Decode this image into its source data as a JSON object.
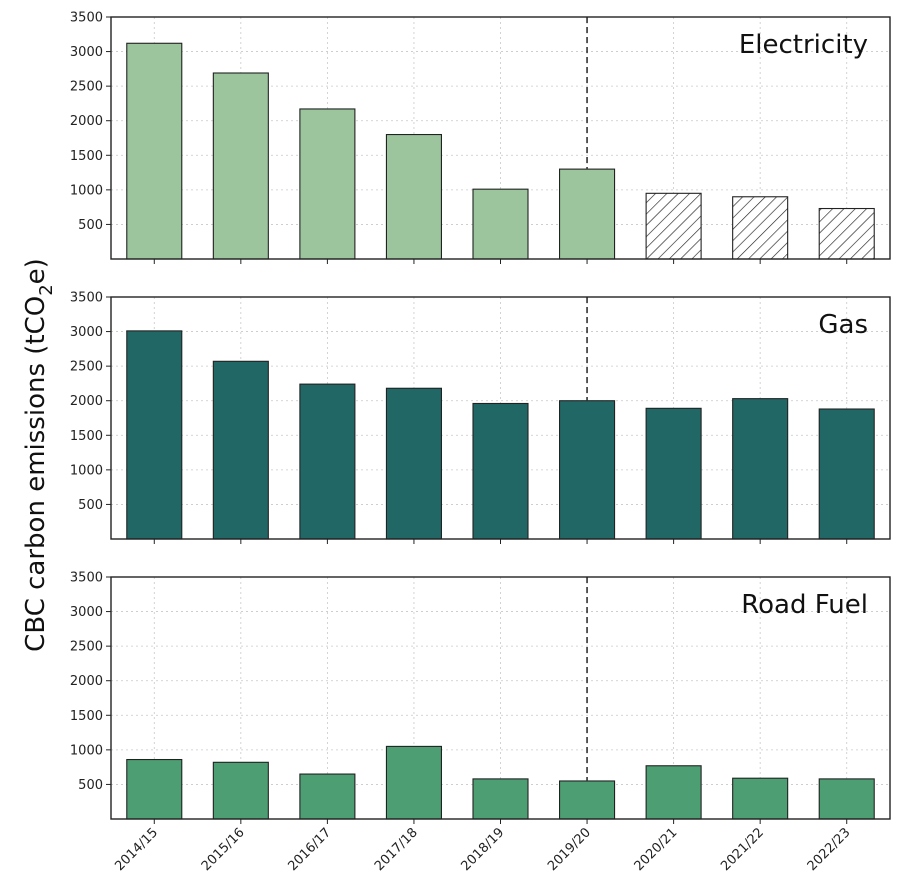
{
  "chart_data": [
    {
      "type": "bar",
      "title": "Electricity",
      "categories": [
        "2014/15",
        "2015/16",
        "2016/17",
        "2017/18",
        "2018/19",
        "2019/20",
        "2020/21",
        "2021/22",
        "2022/23"
      ],
      "values": [
        3120,
        2690,
        2170,
        1800,
        1010,
        1300,
        950,
        900,
        730
      ],
      "hatched": [
        false,
        false,
        false,
        false,
        false,
        false,
        true,
        true,
        true
      ],
      "color": "#9cc59e",
      "ylim": [
        0,
        3500
      ],
      "yticks": [
        500,
        1000,
        1500,
        2000,
        2500,
        3000,
        3500
      ],
      "grid": true,
      "divider_after": "2019/20"
    },
    {
      "type": "bar",
      "title": "Gas",
      "categories": [
        "2014/15",
        "2015/16",
        "2016/17",
        "2017/18",
        "2018/19",
        "2019/20",
        "2020/21",
        "2021/22",
        "2022/23"
      ],
      "values": [
        3010,
        2570,
        2240,
        2180,
        1960,
        2000,
        1890,
        2030,
        1880
      ],
      "color": "#216766",
      "ylim": [
        0,
        3500
      ],
      "yticks": [
        500,
        1000,
        1500,
        2000,
        2500,
        3000,
        3500
      ],
      "grid": true,
      "divider_after": "2019/20"
    },
    {
      "type": "bar",
      "title": "Road Fuel",
      "categories": [
        "2014/15",
        "2015/16",
        "2016/17",
        "2017/18",
        "2018/19",
        "2019/20",
        "2020/21",
        "2021/22",
        "2022/23"
      ],
      "values": [
        860,
        820,
        650,
        1050,
        580,
        550,
        770,
        590,
        580
      ],
      "color": "#4e9e74",
      "ylim": [
        0,
        3500
      ],
      "yticks": [
        500,
        1000,
        1500,
        2000,
        2500,
        3000,
        3500
      ],
      "grid": true,
      "divider_after": "2019/20"
    }
  ],
  "ylabel_text": "CBC carbon emissions (tCO",
  "ylabel_sub": "2",
  "ylabel_tail": "e)"
}
